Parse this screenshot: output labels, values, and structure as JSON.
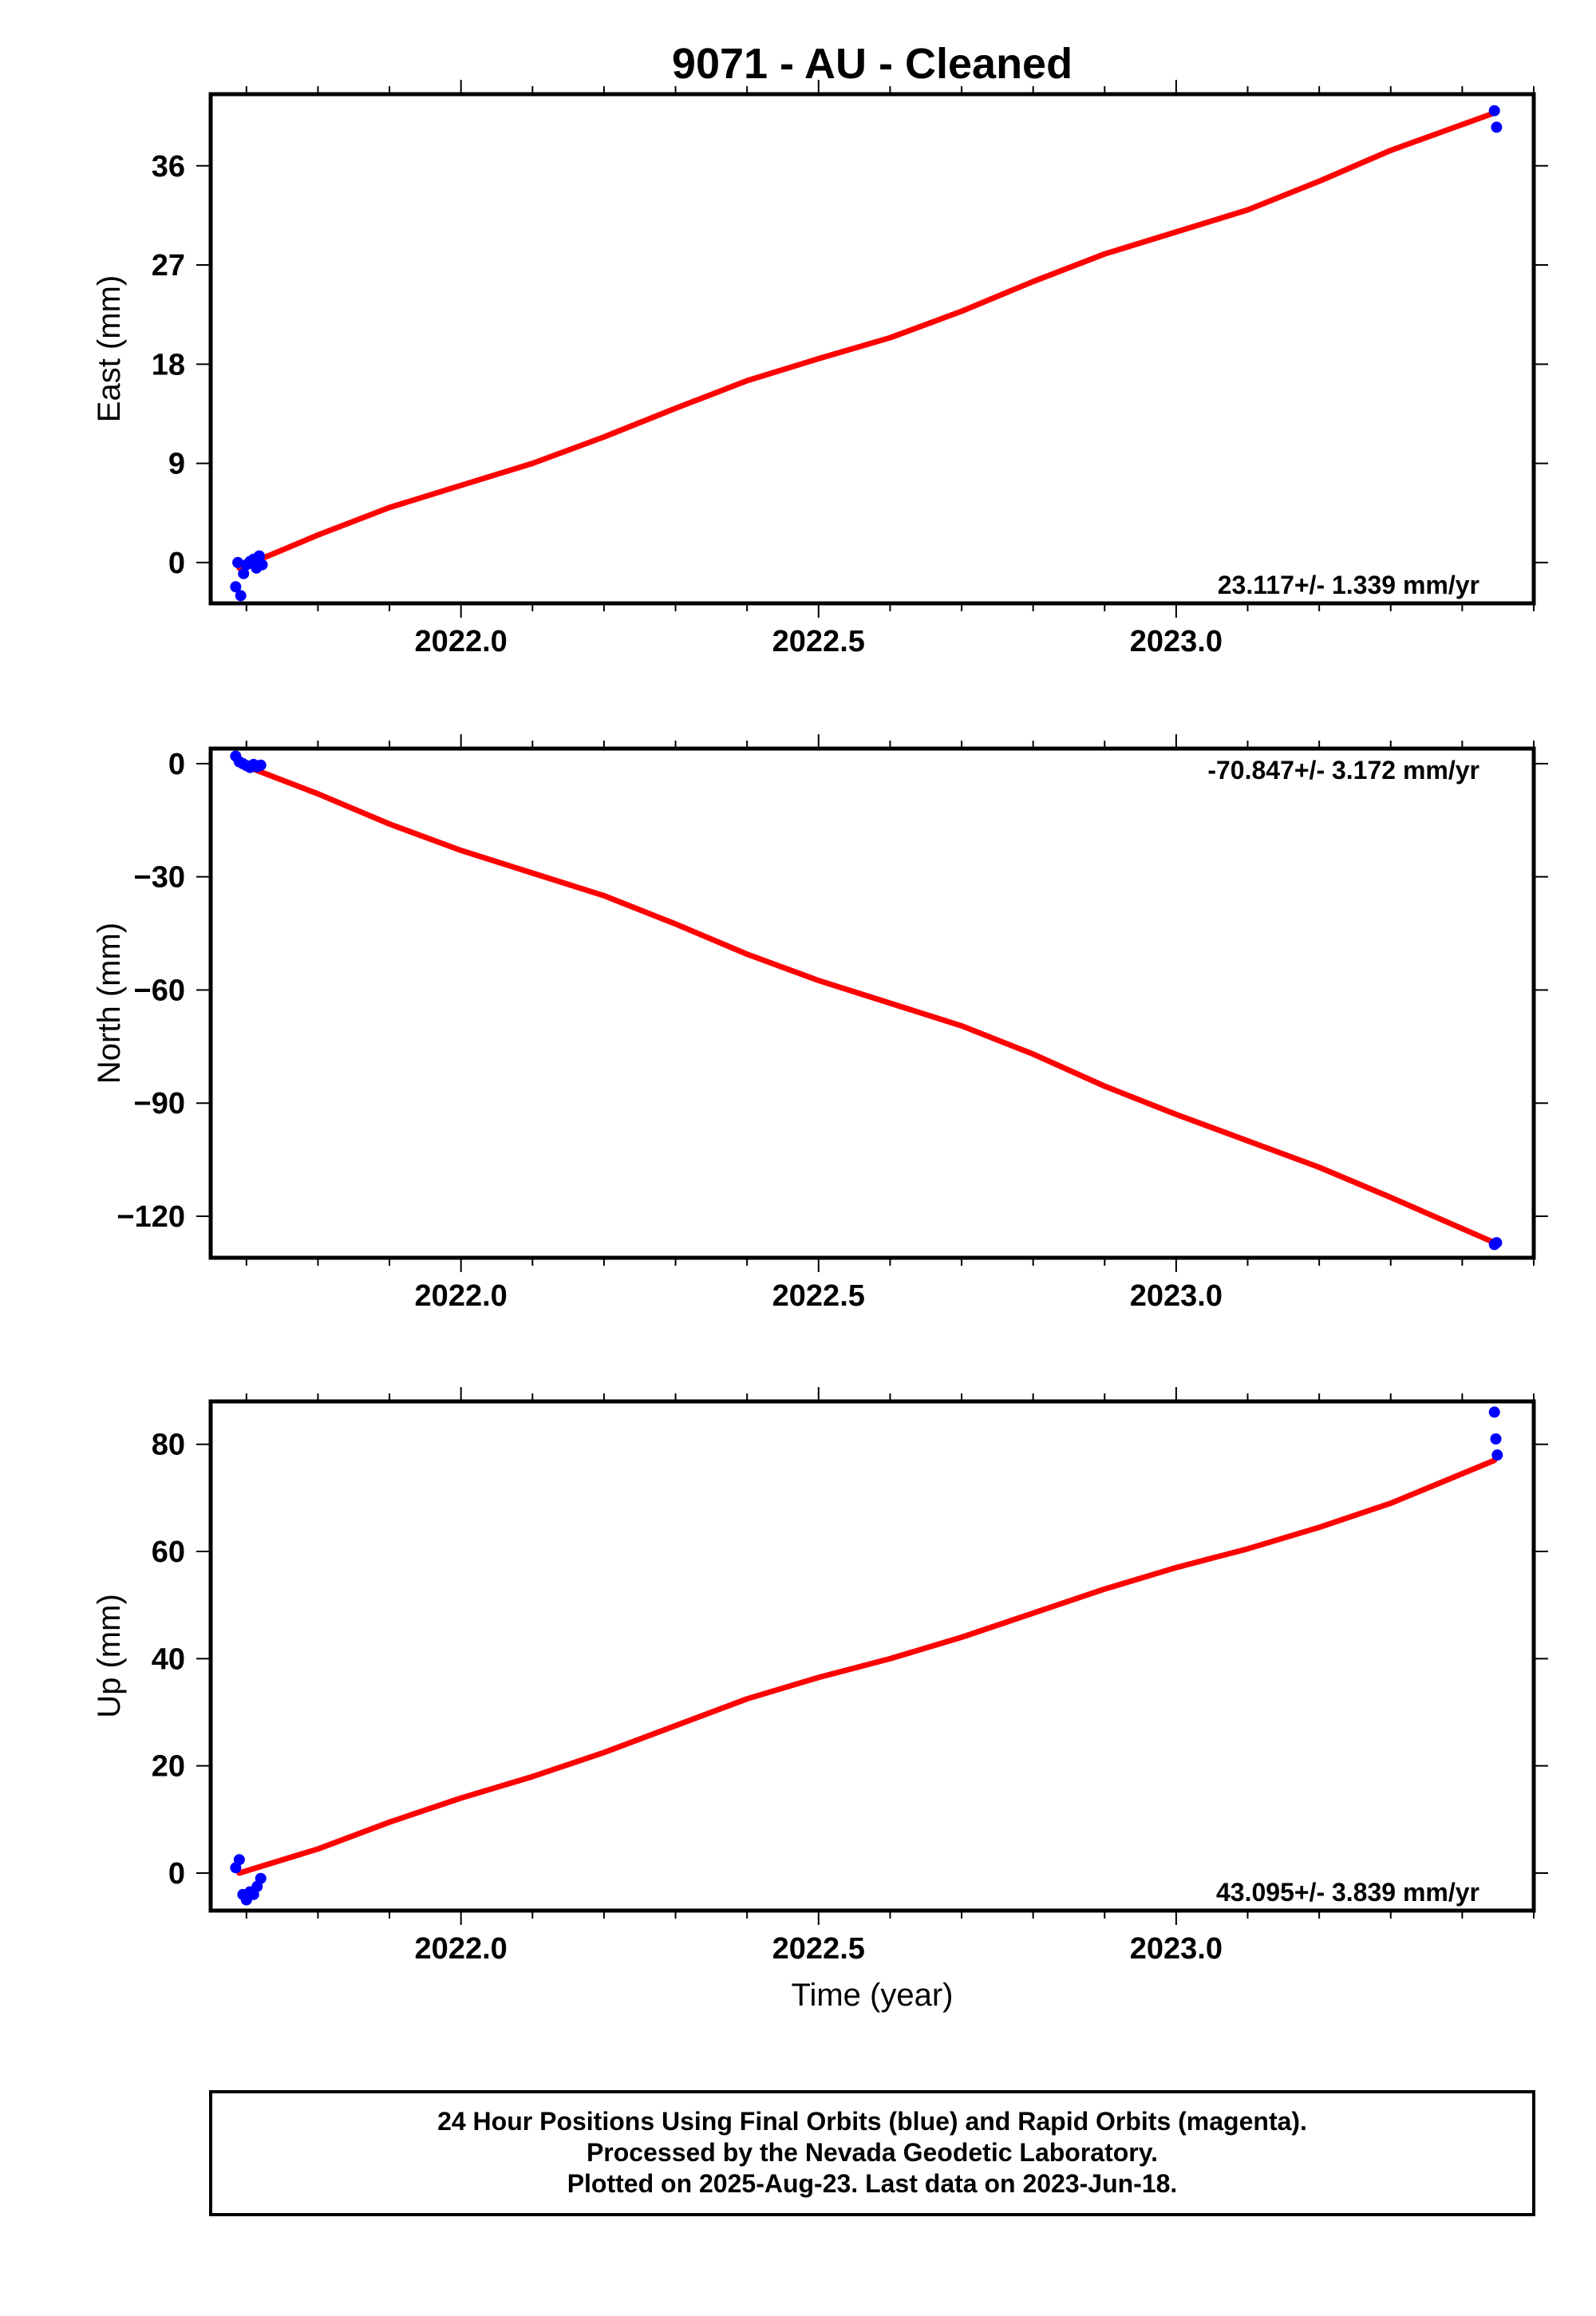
{
  "title": "9071  - AU - Cleaned",
  "x_axis_label": "Time (year)",
  "footer": {
    "lines": [
      "24 Hour Positions Using Final Orbits (blue) and Rapid Orbits (magenta).",
      "Processed by the Nevada Geodetic Laboratory.",
      "Plotted on 2025-Aug-23. Last data on 2023-Jun-18."
    ]
  },
  "colors": {
    "observations": "#0000ff",
    "fit": "#ff0000",
    "frame": "#000000"
  },
  "chart_data": [
    {
      "type": "scatter",
      "ylabel": "East (mm)",
      "rate_text": "23.117+/- 1.339 mm/yr",
      "rate_position": "bottom-right",
      "xlim": [
        2021.65,
        2023.5
      ],
      "ylim": [
        -3.7,
        42.5
      ],
      "x_ticks": [
        2022.0,
        2022.5,
        2023.0
      ],
      "x_tick_labels": [
        "2022.0",
        "2022.5",
        "2023.0"
      ],
      "y_ticks": [
        0,
        9,
        18,
        27,
        36
      ],
      "y_tick_labels": [
        "0",
        "9",
        "18",
        "27",
        "36"
      ],
      "points": {
        "x": [
          2021.685,
          2021.688,
          2021.692,
          2021.696,
          2021.7,
          2021.705,
          2021.71,
          2021.714,
          2021.718,
          2021.722,
          2023.445,
          2023.448
        ],
        "y": [
          -2.2,
          0.0,
          -3.0,
          -1.0,
          -0.2,
          0.1,
          0.3,
          -0.5,
          0.6,
          -0.2,
          41.0,
          39.5
        ]
      },
      "fit": {
        "x": [
          2021.69,
          2021.8,
          2021.9,
          2022.0,
          2022.1,
          2022.2,
          2022.3,
          2022.4,
          2022.5,
          2022.6,
          2022.7,
          2022.8,
          2022.9,
          2023.0,
          2023.1,
          2023.2,
          2023.3,
          2023.445
        ],
        "y": [
          -0.5,
          2.5,
          5.0,
          7.0,
          9.0,
          11.4,
          14.0,
          16.5,
          18.5,
          20.4,
          22.8,
          25.5,
          28.0,
          30.0,
          32.0,
          34.6,
          37.4,
          40.8
        ]
      }
    },
    {
      "type": "scatter",
      "ylabel": "North (mm)",
      "rate_text": "-70.847+/- 3.172 mm/yr",
      "rate_position": "top-right",
      "xlim": [
        2021.65,
        2023.5
      ],
      "ylim": [
        -131,
        4
      ],
      "x_ticks": [
        2022.0,
        2022.5,
        2023.0
      ],
      "x_tick_labels": [
        "2022.0",
        "2022.5",
        "2023.0"
      ],
      "y_ticks": [
        0,
        -30,
        -60,
        -90,
        -120
      ],
      "y_tick_labels": [
        "0",
        "−30",
        "−60",
        "−90",
        "−120"
      ],
      "points": {
        "x": [
          2021.685,
          2021.69,
          2021.695,
          2021.7,
          2021.705,
          2021.71,
          2021.715,
          2021.72,
          2023.445,
          2023.448
        ],
        "y": [
          2.0,
          0.5,
          0.0,
          -0.5,
          -1.0,
          -0.2,
          -0.8,
          -0.4,
          -127.5,
          -127.0
        ]
      },
      "fit": {
        "x": [
          2021.69,
          2021.8,
          2021.9,
          2022.0,
          2022.1,
          2022.2,
          2022.3,
          2022.4,
          2022.5,
          2022.6,
          2022.7,
          2022.8,
          2022.9,
          2023.0,
          2023.1,
          2023.2,
          2023.3,
          2023.445
        ],
        "y": [
          0.0,
          -8.0,
          -16.0,
          -23.0,
          -29.0,
          -35.0,
          -42.5,
          -50.5,
          -57.5,
          -63.5,
          -69.5,
          -77.0,
          -85.5,
          -93.0,
          -100.0,
          -107.0,
          -115.0,
          -127.0
        ]
      }
    },
    {
      "type": "scatter",
      "ylabel": "Up (mm)",
      "rate_text": "43.095+/- 3.839 mm/yr",
      "rate_position": "bottom-right",
      "xlim": [
        2021.65,
        2023.5
      ],
      "ylim": [
        -7,
        88
      ],
      "x_ticks": [
        2022.0,
        2022.5,
        2023.0
      ],
      "x_tick_labels": [
        "2022.0",
        "2022.5",
        "2023.0"
      ],
      "y_ticks": [
        0,
        20,
        40,
        60,
        80
      ],
      "y_tick_labels": [
        "0",
        "20",
        "40",
        "60",
        "80"
      ],
      "points": {
        "x": [
          2021.685,
          2021.69,
          2021.695,
          2021.7,
          2021.705,
          2021.71,
          2021.715,
          2021.72,
          2023.445,
          2023.447,
          2023.449
        ],
        "y": [
          1.0,
          2.5,
          -4.0,
          -5.0,
          -3.5,
          -4.0,
          -2.5,
          -1.0,
          86.0,
          81.0,
          78.0
        ]
      },
      "fit": {
        "x": [
          2021.69,
          2021.8,
          2021.9,
          2022.0,
          2022.1,
          2022.2,
          2022.3,
          2022.4,
          2022.5,
          2022.6,
          2022.7,
          2022.8,
          2022.9,
          2023.0,
          2023.1,
          2023.2,
          2023.3,
          2023.445
        ],
        "y": [
          0.0,
          4.5,
          9.5,
          14.0,
          18.0,
          22.5,
          27.5,
          32.5,
          36.5,
          40.0,
          44.0,
          48.5,
          53.0,
          57.0,
          60.5,
          64.5,
          69.0,
          77.0
        ]
      }
    }
  ]
}
